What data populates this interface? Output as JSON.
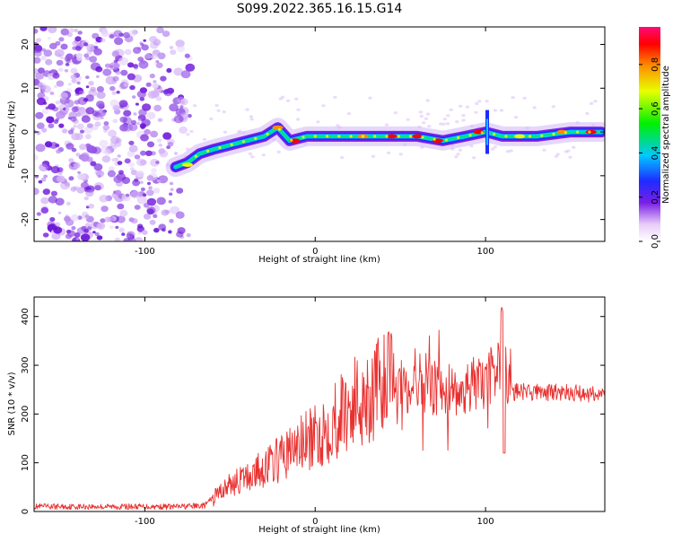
{
  "chart_data": [
    {
      "type": "heatmap",
      "title": "S099.2022.365.16.15.G14",
      "xlabel": "Height of straight line (km)",
      "ylabel": "Frequency (Hz)",
      "xlim": [
        -165,
        170
      ],
      "ylim": [
        -25,
        24
      ],
      "xticks": [
        -100,
        0,
        100
      ],
      "yticks": [
        20,
        10,
        0,
        -10,
        -20
      ],
      "colorbar": {
        "label": "Normalized spectral amplitude",
        "ticks": [
          0.0,
          0.2,
          0.4,
          0.6,
          0.8
        ],
        "range": [
          0.0,
          0.97
        ]
      },
      "ridge": [
        {
          "x": -82,
          "y": -8
        },
        {
          "x": -75,
          "y": -7
        },
        {
          "x": -68,
          "y": -5
        },
        {
          "x": -60,
          "y": -4
        },
        {
          "x": -50,
          "y": -3
        },
        {
          "x": -40,
          "y": -2
        },
        {
          "x": -30,
          "y": -1
        },
        {
          "x": -22,
          "y": 1
        },
        {
          "x": -15,
          "y": -2
        },
        {
          "x": -5,
          "y": -1
        },
        {
          "x": 5,
          "y": -1
        },
        {
          "x": 20,
          "y": -1
        },
        {
          "x": 40,
          "y": -1
        },
        {
          "x": 60,
          "y": -1
        },
        {
          "x": 75,
          "y": -2
        },
        {
          "x": 88,
          "y": -1
        },
        {
          "x": 100,
          "y": 0
        },
        {
          "x": 110,
          "y": -1
        },
        {
          "x": 130,
          "y": -1
        },
        {
          "x": 150,
          "y": 0
        },
        {
          "x": 168,
          "y": 0
        }
      ]
    },
    {
      "type": "line",
      "title": "",
      "xlabel": "Height of straight line (km)",
      "ylabel": "SNR (10 * v/v)",
      "xlim": [
        -165,
        170
      ],
      "ylim": [
        0,
        440
      ],
      "xticks": [
        -100,
        0,
        100
      ],
      "yticks": [
        0,
        100,
        200,
        300,
        400
      ],
      "series": [
        {
          "name": "SNR",
          "color": "#e8302f",
          "x": [
            -165,
            -140,
            -110,
            -80,
            -65,
            -58,
            -50,
            -40,
            -30,
            -20,
            -10,
            0,
            10,
            20,
            30,
            40,
            45,
            50,
            60,
            70,
            80,
            90,
            100,
            105,
            110,
            115,
            130,
            150,
            170
          ],
          "values": [
            10,
            10,
            10,
            10,
            12,
            35,
            55,
            70,
            90,
            110,
            135,
            150,
            185,
            215,
            240,
            250,
            270,
            260,
            265,
            255,
            250,
            255,
            260,
            290,
            310,
            245,
            245,
            243,
            240
          ]
        }
      ]
    }
  ]
}
